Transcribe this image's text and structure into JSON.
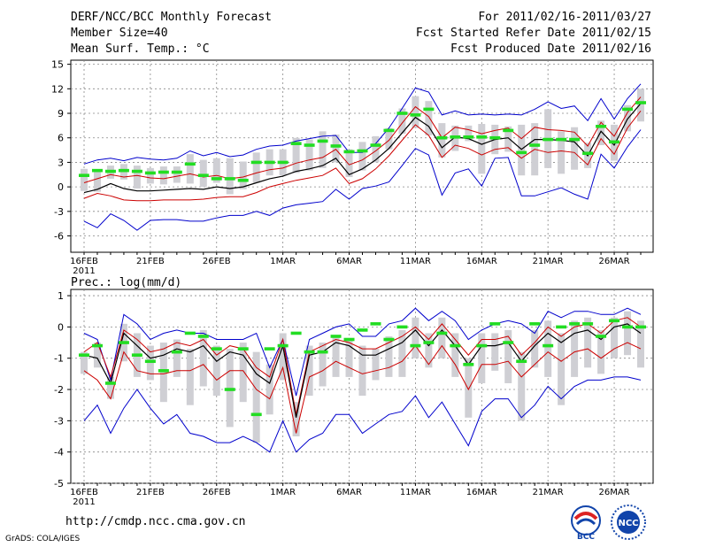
{
  "header": {
    "title": "DERF/NCC/BCC Monthly Forecast",
    "member": "Member Size=40",
    "variable": "Mean Surf. Temp.: °C",
    "period": "For 2011/02/16-2011/03/27",
    "started": "Fcst Started Refer Date 2011/02/15",
    "produced": "Fcst Produced Date 2011/02/16"
  },
  "footer": {
    "url": "http://cmdp.ncc.cma.gov.cn",
    "credit": "GrADS: COLA/IGES",
    "logo_bcc": "BCC",
    "logo_ncc": "NCC"
  },
  "colors": {
    "blue": "#0000cc",
    "red": "#cc0000",
    "black": "#000000",
    "green": "#22dd22",
    "box": "#cfcfd4"
  },
  "chart_data": [
    {
      "type": "line",
      "title": "Mean Surf. Temp.: °C",
      "xlabel": "",
      "ylabel": "°C",
      "ylim": [
        -8,
        15.5
      ],
      "yticks": [
        -6,
        -3,
        0,
        3,
        6,
        9,
        12,
        15
      ],
      "xtick_labels": [
        "16FEB",
        "21FEB",
        "26FEB",
        "1MAR",
        "6MAR",
        "11MAR",
        "16MAR",
        "21MAR",
        "26MAR"
      ],
      "x_year_label": "2011",
      "grid": true,
      "series": [
        {
          "name": "max",
          "values": [
            2.8,
            3.3,
            3.5,
            3.2,
            3.6,
            3.4,
            3.3,
            3.5,
            4.4,
            3.8,
            4.2,
            3.7,
            3.9,
            4.6,
            5.0,
            5.1,
            5.6,
            5.9,
            6.2,
            6.3,
            4.2,
            4.2,
            5.3,
            7.2,
            9.6,
            12.1,
            11.6,
            8.8,
            9.3,
            8.8,
            8.9,
            8.8,
            8.9,
            8.8,
            9.5,
            10.4,
            9.6,
            9.9,
            8.1,
            10.8,
            8.3,
            10.8,
            12.6
          ]
        },
        {
          "name": "upper",
          "values": [
            0.5,
            1.0,
            1.5,
            1.2,
            1.4,
            1.1,
            1.0,
            1.3,
            1.6,
            1.2,
            1.4,
            1.0,
            1.2,
            1.7,
            2.1,
            2.3,
            2.9,
            3.3,
            3.6,
            4.6,
            2.7,
            3.3,
            4.4,
            5.7,
            7.8,
            9.8,
            8.6,
            6.0,
            7.3,
            7.0,
            6.5,
            6.9,
            7.2,
            5.9,
            7.3,
            7.0,
            6.9,
            6.7,
            5.0,
            7.9,
            6.2,
            9.1,
            11.0
          ]
        },
        {
          "name": "mean",
          "values": [
            -0.7,
            -0.3,
            0.4,
            -0.2,
            -0.5,
            -0.5,
            -0.4,
            -0.3,
            -0.2,
            -0.3,
            0.0,
            -0.2,
            0.0,
            0.5,
            1.0,
            1.3,
            1.9,
            2.2,
            2.6,
            3.5,
            1.5,
            2.2,
            3.3,
            4.7,
            6.6,
            8.5,
            7.4,
            4.8,
            6.1,
            5.9,
            5.2,
            5.8,
            6.0,
            4.6,
            5.8,
            5.8,
            5.7,
            5.5,
            3.8,
            6.8,
            5.1,
            8.3,
            10.2
          ]
        },
        {
          "name": "lower",
          "values": [
            -1.4,
            -0.8,
            -1.1,
            -1.6,
            -1.7,
            -1.7,
            -1.6,
            -1.6,
            -1.6,
            -1.5,
            -1.3,
            -1.2,
            -1.2,
            -0.7,
            0.0,
            0.4,
            0.8,
            1.1,
            1.4,
            2.3,
            0.4,
            1.0,
            2.2,
            3.8,
            5.7,
            7.6,
            6.3,
            3.6,
            5.1,
            4.7,
            3.9,
            4.6,
            4.8,
            3.5,
            4.6,
            4.2,
            4.4,
            4.2,
            2.7,
            5.9,
            4.0,
            7.2,
            9.3
          ]
        },
        {
          "name": "min",
          "values": [
            -4.2,
            -5.0,
            -3.3,
            -4.1,
            -5.3,
            -4.1,
            -4.0,
            -4.0,
            -4.2,
            -4.2,
            -3.8,
            -3.5,
            -3.5,
            -3.0,
            -3.5,
            -2.6,
            -2.2,
            -2.0,
            -1.8,
            -0.3,
            -1.5,
            -0.2,
            0.1,
            0.6,
            2.6,
            4.7,
            3.9,
            -1.0,
            1.7,
            2.2,
            0.1,
            3.5,
            3.6,
            -1.1,
            -1.1,
            -0.6,
            -0.1,
            -0.9,
            -1.5,
            4.0,
            2.3,
            4.9,
            7.0
          ]
        },
        {
          "name": "box_top",
          "values": [
            2.2,
            2.0,
            2.6,
            2.8,
            2.6,
            2.3,
            2.5,
            2.5,
            4.0,
            3.3,
            3.5,
            3.5,
            3.1,
            4.2,
            4.6,
            4.6,
            6.0,
            5.8,
            6.8,
            6.4,
            4.6,
            5.5,
            6.2,
            7.2,
            9.6,
            11.1,
            10.5,
            7.8,
            7.5,
            7.5,
            7.7,
            7.6,
            7.4,
            7.6,
            7.8,
            9.5,
            6.8,
            7.3,
            5.4,
            8.1,
            7.6,
            10.0,
            12.0
          ]
        },
        {
          "name": "box_bottom",
          "values": [
            -0.5,
            -0.6,
            1.0,
            0.9,
            -0.2,
            0.4,
            0.3,
            0.5,
            0.4,
            0.0,
            0.5,
            -0.9,
            -0.3,
            0.5,
            1.4,
            1.4,
            1.7,
            2.0,
            2.3,
            3.0,
            1.2,
            2.0,
            3.0,
            4.6,
            6.5,
            7.2,
            6.3,
            3.6,
            4.4,
            5.6,
            1.6,
            4.0,
            4.3,
            1.4,
            1.4,
            2.3,
            1.6,
            2.1,
            2.3,
            5.1,
            3.2,
            6.8,
            8.0
          ]
        },
        {
          "name": "control",
          "values": [
            1.4,
            2.0,
            1.9,
            2.0,
            1.9,
            1.7,
            1.8,
            1.8,
            2.8,
            1.4,
            1.0,
            1.0,
            0.8,
            3.0,
            3.0,
            3.0,
            5.3,
            5.1,
            5.6,
            5.0,
            4.3,
            4.4,
            5.1,
            6.9,
            9.0,
            8.8,
            9.5,
            6.0,
            6.1,
            6.1,
            6.1,
            6.0,
            6.9,
            4.2,
            5.1,
            5.8,
            5.8,
            5.8,
            4.1,
            7.4,
            5.5,
            9.5,
            10.3
          ]
        }
      ]
    },
    {
      "type": "line",
      "title": "Prec.: log(mm/d)",
      "xlabel": "",
      "ylabel": "log(mm/d)",
      "ylim": [
        -5,
        1.2
      ],
      "yticks": [
        -5,
        -4,
        -3,
        -2,
        -1,
        0,
        1
      ],
      "xtick_labels": [
        "16FEB",
        "21FEB",
        "26FEB",
        "1MAR",
        "6MAR",
        "11MAR",
        "16MAR",
        "21MAR",
        "26MAR"
      ],
      "x_year_label": "2011",
      "grid": true,
      "series": [
        {
          "name": "max",
          "values": [
            -0.2,
            -0.4,
            -1.7,
            0.4,
            0.1,
            -0.4,
            -0.2,
            -0.1,
            -0.2,
            -0.2,
            -0.4,
            -0.4,
            -0.4,
            -0.2,
            -1.3,
            -0.4,
            -2.2,
            -0.4,
            -0.2,
            0.0,
            0.1,
            -0.3,
            -0.3,
            0.1,
            0.2,
            0.6,
            0.2,
            0.5,
            0.2,
            -0.4,
            -0.1,
            0.1,
            0.2,
            0.1,
            -0.2,
            0.5,
            0.3,
            0.5,
            0.5,
            0.4,
            0.4,
            0.6,
            0.4
          ]
        },
        {
          "name": "upper",
          "values": [
            -0.8,
            -0.5,
            -1.6,
            -0.1,
            -0.4,
            -0.8,
            -0.7,
            -0.5,
            -0.6,
            -0.4,
            -0.9,
            -0.6,
            -0.7,
            -1.3,
            -1.6,
            -0.4,
            -2.8,
            -0.8,
            -0.6,
            -0.4,
            -0.5,
            -0.7,
            -0.7,
            -0.5,
            -0.3,
            0.0,
            -0.4,
            0.1,
            -0.4,
            -0.9,
            -0.4,
            -0.4,
            -0.3,
            -0.9,
            -0.5,
            0.0,
            -0.3,
            0.0,
            0.1,
            -0.2,
            0.2,
            0.3,
            0.0
          ]
        },
        {
          "name": "mean",
          "values": [
            -0.9,
            -1.0,
            -1.8,
            -0.2,
            -0.6,
            -1.0,
            -0.9,
            -0.7,
            -0.8,
            -0.6,
            -1.1,
            -0.8,
            -0.9,
            -1.5,
            -1.8,
            -0.6,
            -2.9,
            -0.9,
            -0.8,
            -0.5,
            -0.6,
            -0.9,
            -0.9,
            -0.7,
            -0.5,
            -0.1,
            -0.6,
            -0.1,
            -0.6,
            -1.2,
            -0.6,
            -0.6,
            -0.5,
            -1.1,
            -0.6,
            -0.2,
            -0.5,
            -0.2,
            -0.1,
            -0.4,
            0.0,
            0.1,
            -0.2
          ]
        },
        {
          "name": "lower",
          "values": [
            -1.4,
            -1.7,
            -2.3,
            -0.8,
            -1.4,
            -1.5,
            -1.5,
            -1.4,
            -1.4,
            -1.2,
            -1.7,
            -1.4,
            -1.4,
            -2.0,
            -2.3,
            -1.3,
            -3.4,
            -1.6,
            -1.4,
            -1.1,
            -1.3,
            -1.5,
            -1.4,
            -1.3,
            -1.1,
            -0.6,
            -1.2,
            -0.6,
            -1.2,
            -2.0,
            -1.2,
            -1.2,
            -1.1,
            -1.6,
            -1.2,
            -0.8,
            -1.1,
            -0.8,
            -0.7,
            -1.0,
            -0.7,
            -0.5,
            -0.7
          ]
        },
        {
          "name": "min",
          "values": [
            -3.0,
            -2.5,
            -3.4,
            -2.6,
            -2.0,
            -2.6,
            -3.1,
            -2.8,
            -3.4,
            -3.5,
            -3.7,
            -3.7,
            -3.5,
            -3.7,
            -4.0,
            -3.0,
            -4.0,
            -3.6,
            -3.4,
            -2.8,
            -2.8,
            -3.4,
            -3.1,
            -2.8,
            -2.7,
            -2.2,
            -2.9,
            -2.4,
            -3.1,
            -3.8,
            -2.7,
            -2.3,
            -2.3,
            -2.9,
            -2.5,
            -1.9,
            -2.3,
            -1.9,
            -1.7,
            -1.7,
            -1.6,
            -1.6,
            -1.7
          ]
        },
        {
          "name": "box_top",
          "values": [
            -0.8,
            -0.5,
            -1.6,
            0.1,
            -0.2,
            -0.6,
            -0.5,
            -0.4,
            -0.7,
            -0.1,
            -0.6,
            -0.7,
            -0.5,
            -0.8,
            -1.2,
            -0.2,
            -2.4,
            -0.6,
            -0.5,
            -0.3,
            -0.4,
            -0.6,
            -0.7,
            -0.3,
            -0.1,
            0.3,
            -0.2,
            0.3,
            -0.2,
            -1.0,
            -0.2,
            -0.2,
            -0.1,
            -0.8,
            -0.1,
            0.2,
            -0.2,
            0.2,
            0.3,
            -0.1,
            0.3,
            0.5,
            0.2
          ]
        },
        {
          "name": "box_bottom",
          "values": [
            -1.5,
            -1.3,
            -2.3,
            -1.1,
            -1.6,
            -1.7,
            -2.4,
            -1.6,
            -2.5,
            -1.9,
            -2.2,
            -3.2,
            -2.4,
            -3.7,
            -2.8,
            -1.7,
            -3.5,
            -2.2,
            -1.9,
            -1.6,
            -1.6,
            -2.2,
            -1.7,
            -1.6,
            -1.6,
            -1.0,
            -1.3,
            -1.0,
            -1.6,
            -2.9,
            -1.8,
            -1.4,
            -1.8,
            -3.0,
            -1.3,
            -1.6,
            -2.5,
            -1.6,
            -1.3,
            -1.5,
            -1.0,
            -0.9,
            -1.3
          ]
        },
        {
          "name": "control",
          "values": [
            -0.9,
            -0.6,
            -1.8,
            -0.5,
            -0.9,
            -1.1,
            -1.4,
            -0.8,
            -0.2,
            -0.3,
            -0.7,
            -2.0,
            -0.7,
            -2.8,
            -0.7,
            -0.6,
            -0.2,
            -0.8,
            -0.8,
            -0.3,
            -0.4,
            -0.1,
            0.1,
            -0.4,
            0.0,
            -0.6,
            -0.5,
            -0.2,
            -0.6,
            -1.2,
            -0.6,
            0.1,
            -0.5,
            -1.1,
            0.1,
            -0.6,
            0.0,
            0.1,
            0.1,
            -0.3,
            0.2,
            0.0,
            0.0
          ]
        }
      ]
    }
  ]
}
